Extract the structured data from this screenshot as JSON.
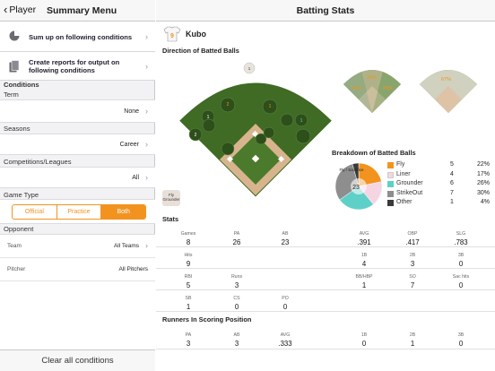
{
  "sidebar": {
    "back_label": "Player",
    "title": "Summary Menu",
    "menu_items": [
      {
        "label": "Sum up on following conditions",
        "icon": "pie-chart-icon"
      },
      {
        "label": "Create reports for output on following conditions",
        "icon": "documents-icon"
      }
    ],
    "conditions_header": "Conditions",
    "term": {
      "label": "Term",
      "value": "None"
    },
    "seasons": {
      "label": "Seasons",
      "value": "Career"
    },
    "competitions": {
      "label": "Competitions/Leagues",
      "value": "All"
    },
    "game_type": {
      "label": "Game Type",
      "options": [
        "Official",
        "Practice",
        "Both"
      ],
      "selected": "Both"
    },
    "opponent": {
      "label": "Opponent",
      "team_label": "Team",
      "team_value": "All Teams",
      "pitcher_label": "Pitcher",
      "pitcher_value": "All Pitchers"
    },
    "clear_label": "Clear all conditions"
  },
  "main": {
    "title": "Batting Stats",
    "player": {
      "number": "9",
      "name": "Kubo"
    },
    "direction_label": "Direction of Batted Balls",
    "mini_field_1": {
      "percents": [
        "33%",
        "33%",
        "33%"
      ]
    },
    "mini_field_2": {
      "percents": [
        "67%"
      ]
    },
    "breakdown_label": "Breakdown of Batted Balls",
    "fly_legend_badge": "Fly Grounder",
    "pie_labels": {
      "outer": "Fly / Sacrifice",
      "inner": "23"
    },
    "colors": {
      "accent": "#f3931f",
      "field_grass": "#3f6b24",
      "infield_dirt": "#d8b48e",
      "fly": "#f3931f",
      "liner": "#f4d4e0",
      "grounder": "#5fd0c8",
      "strikeout": "#8e8e8e",
      "other": "#3a3a3a"
    },
    "legend": [
      {
        "name": "Fly",
        "count": "5",
        "pct": "22%",
        "color": "#f3931f"
      },
      {
        "name": "Liner",
        "count": "4",
        "pct": "17%",
        "color": "#f6d5e3"
      },
      {
        "name": "Grounder",
        "count": "6",
        "pct": "26%",
        "color": "#5fd0c8"
      },
      {
        "name": "StrikeOut",
        "count": "7",
        "pct": "30%",
        "color": "#8e8e8e"
      },
      {
        "name": "Other",
        "count": "1",
        "pct": "4%",
        "color": "#3a3a3a"
      }
    ],
    "stats_label": "Stats",
    "stats_rows": [
      [
        {
          "label": "Games",
          "value": "8"
        },
        {
          "label": "PA",
          "value": "26"
        },
        {
          "label": "AB",
          "value": "23"
        },
        {
          "label": "AVG",
          "value": ".391"
        },
        {
          "label": "OBP",
          "value": ".417"
        },
        {
          "label": "SLG",
          "value": ".783"
        }
      ],
      [
        {
          "label": "Hits",
          "value": "9"
        },
        {
          "label": "",
          "value": ""
        },
        {
          "label": "",
          "value": ""
        },
        {
          "label": "1B",
          "value": "4"
        },
        {
          "label": "2B",
          "value": "3"
        },
        {
          "label": "3B",
          "value": "0"
        }
      ],
      [
        {
          "label": "RBI",
          "value": "5"
        },
        {
          "label": "Runs",
          "value": "3"
        },
        {
          "label": "",
          "value": ""
        },
        {
          "label": "BB/HBP",
          "value": "1"
        },
        {
          "label": "SO",
          "value": "7"
        },
        {
          "label": "Sac hits",
          "value": "0"
        }
      ],
      [
        {
          "label": "SB",
          "value": "1"
        },
        {
          "label": "CS",
          "value": "0"
        },
        {
          "label": "PO",
          "value": "0"
        },
        {
          "label": "",
          "value": ""
        },
        {
          "label": "",
          "value": ""
        },
        {
          "label": "",
          "value": ""
        }
      ]
    ],
    "risp_label": "Runners In Scoring Position",
    "risp_row": [
      {
        "label": "PA",
        "value": "3"
      },
      {
        "label": "AB",
        "value": "3"
      },
      {
        "label": "AVG",
        "value": ".333"
      },
      {
        "label": "1B",
        "value": "0"
      },
      {
        "label": "2B",
        "value": "1"
      },
      {
        "label": "3B",
        "value": "0"
      }
    ]
  }
}
